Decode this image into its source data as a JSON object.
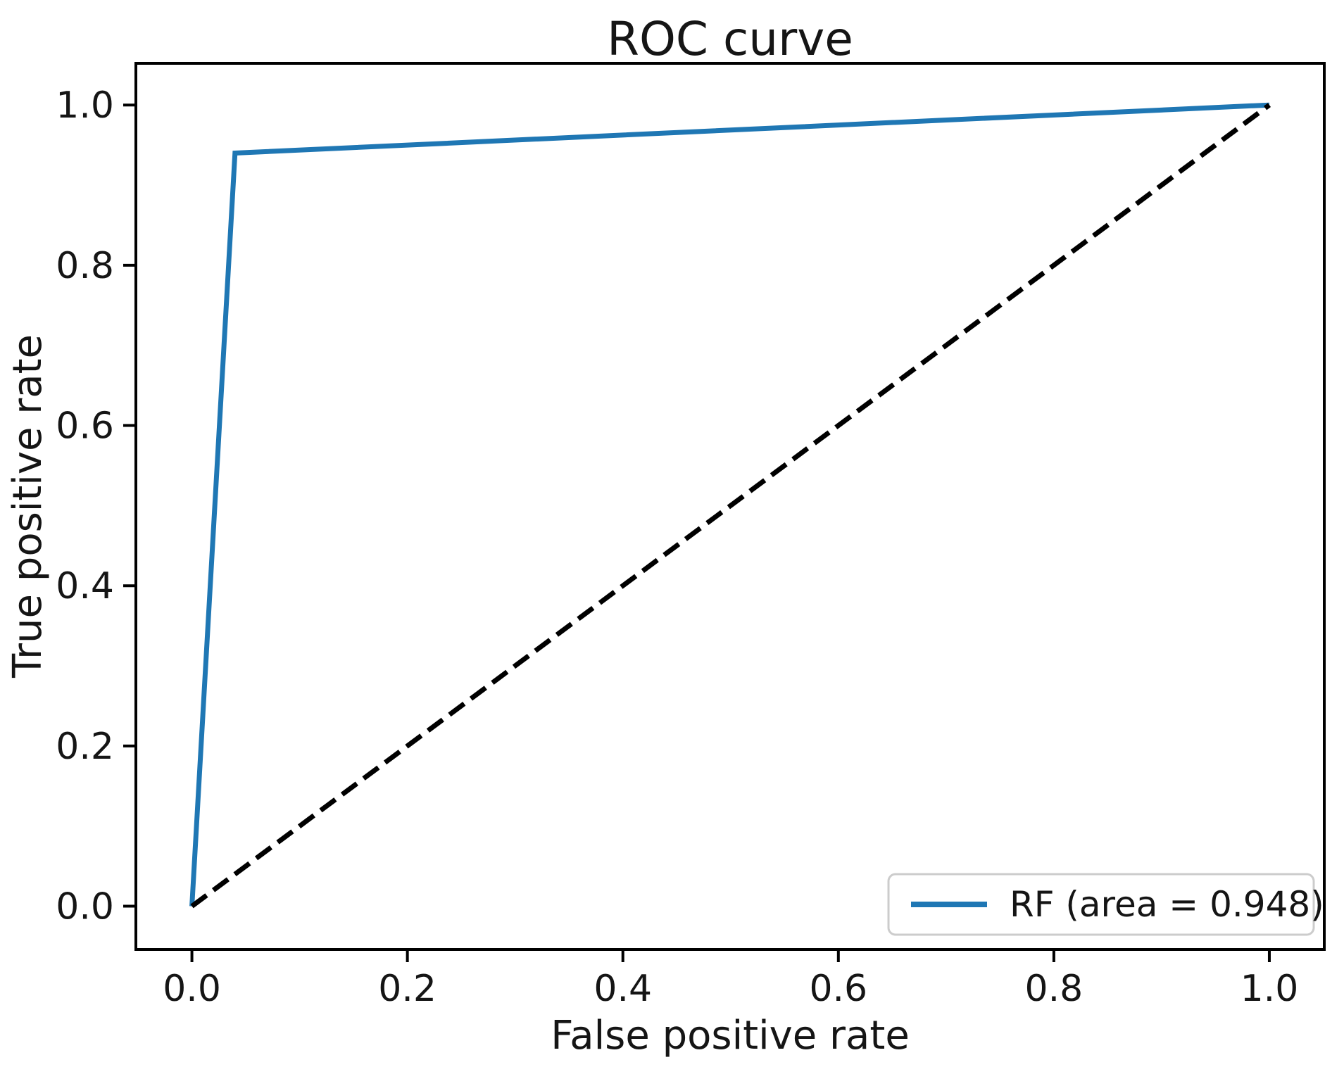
{
  "chart_data": {
    "type": "line",
    "title": "ROC curve",
    "xlabel": "False positive rate",
    "ylabel": "True positive rate",
    "xlim": [
      -0.052,
      1.051
    ],
    "ylim": [
      -0.054,
      1.052
    ],
    "grid": false,
    "xticks": {
      "values": [
        0.0,
        0.2,
        0.4,
        0.6,
        0.8,
        1.0
      ],
      "labels": [
        "0.0",
        "0.2",
        "0.4",
        "0.6",
        "0.8",
        "1.0"
      ]
    },
    "yticks": {
      "values": [
        0.0,
        0.2,
        0.4,
        0.6,
        0.8,
        1.0
      ],
      "labels": [
        "0.0",
        "0.2",
        "0.4",
        "0.6",
        "0.8",
        "1.0"
      ]
    },
    "series": [
      {
        "name": "RF",
        "label": "RF (area = 0.948)",
        "color": "#1f77b4",
        "style": "solid",
        "line_width": 7,
        "x": [
          0.0,
          0.04,
          1.0
        ],
        "y": [
          0.0,
          0.94,
          1.0
        ],
        "auc": 0.948
      },
      {
        "name": "chance-diagonal",
        "label": "",
        "color": "#000000",
        "style": "dashed",
        "line_width": 7,
        "x": [
          0.0,
          1.0
        ],
        "y": [
          0.0,
          1.0
        ]
      }
    ],
    "legend": {
      "position": "lower right",
      "entries": [
        {
          "label": "RF (area = 0.948)",
          "color": "#1f77b4"
        }
      ]
    }
  }
}
